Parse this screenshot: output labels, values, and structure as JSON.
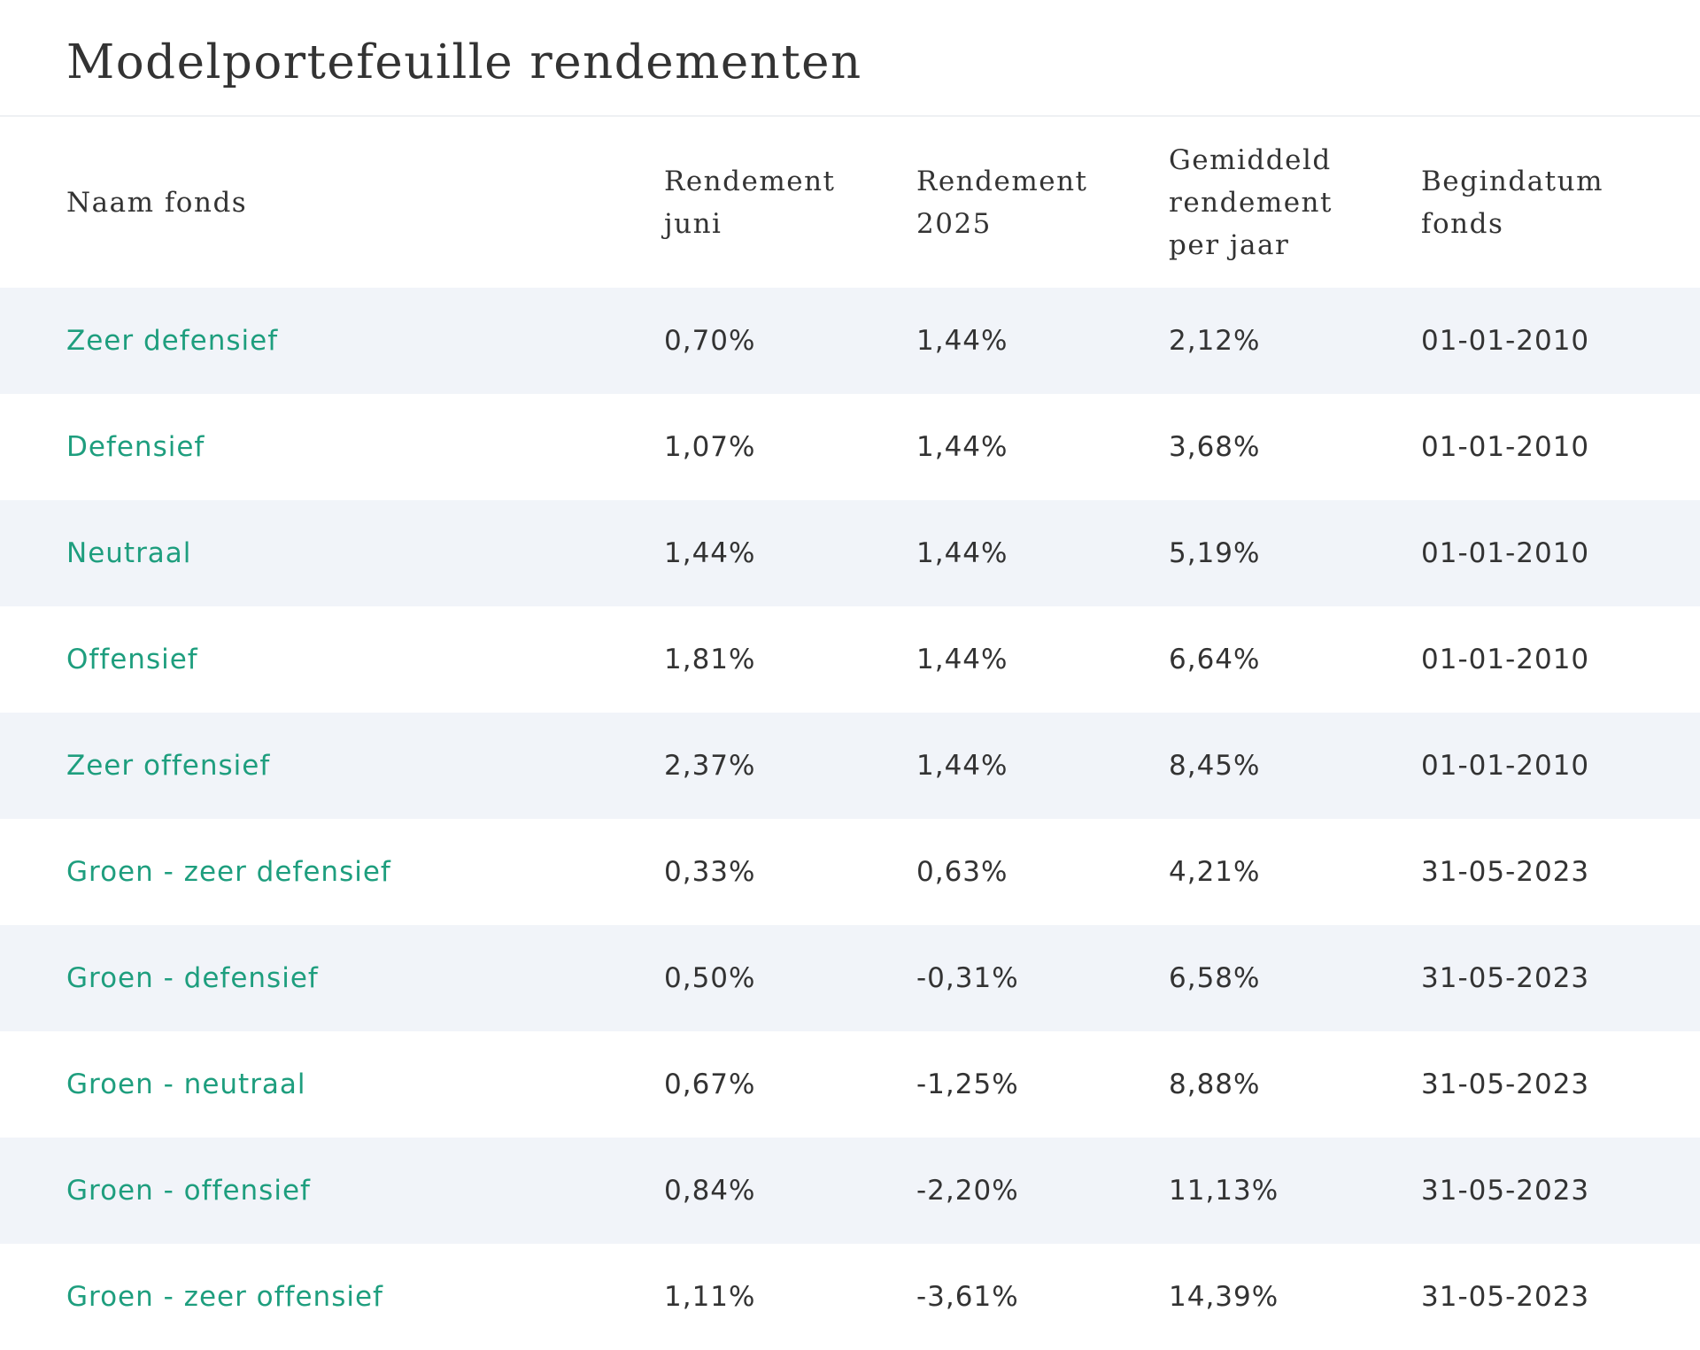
{
  "page": {
    "title": "Modelportefeuille rendementen"
  },
  "table": {
    "headers": [
      "Naam fonds",
      "Rendement\njuni",
      "Rendement\n2025",
      "Gemiddeld\nrendement\nper jaar",
      "Begindatum\nfonds"
    ],
    "rows": [
      [
        "Zeer defensief",
        "0,70%",
        "1,44%",
        "2,12%",
        "01-01-2010"
      ],
      [
        "Defensief",
        "1,07%",
        "1,44%",
        "3,68%",
        "01-01-2010"
      ],
      [
        "Neutraal",
        "1,44%",
        "1,44%",
        "5,19%",
        "01-01-2010"
      ],
      [
        "Offensief",
        "1,81%",
        "1,44%",
        "6,64%",
        "01-01-2010"
      ],
      [
        "Zeer offensief",
        "2,37%",
        "1,44%",
        "8,45%",
        "01-01-2010"
      ],
      [
        "Groen - zeer defensief",
        "0,33%",
        "0,63%",
        "4,21%",
        "31-05-2023"
      ],
      [
        "Groen - defensief",
        "0,50%",
        "-0,31%",
        "6,58%",
        "31-05-2023"
      ],
      [
        "Groen - neutraal",
        "0,67%",
        "-1,25%",
        "8,88%",
        "31-05-2023"
      ],
      [
        "Groen - offensief",
        "0,84%",
        "-2,20%",
        "11,13%",
        "31-05-2023"
      ],
      [
        "Groen - zeer offensief",
        "1,11%",
        "-3,61%",
        "14,39%",
        "31-05-2023"
      ]
    ]
  },
  "colors": {
    "fund_link": "#1e9e7e",
    "text": "#333333",
    "row_stripe": "#f1f4f9"
  }
}
